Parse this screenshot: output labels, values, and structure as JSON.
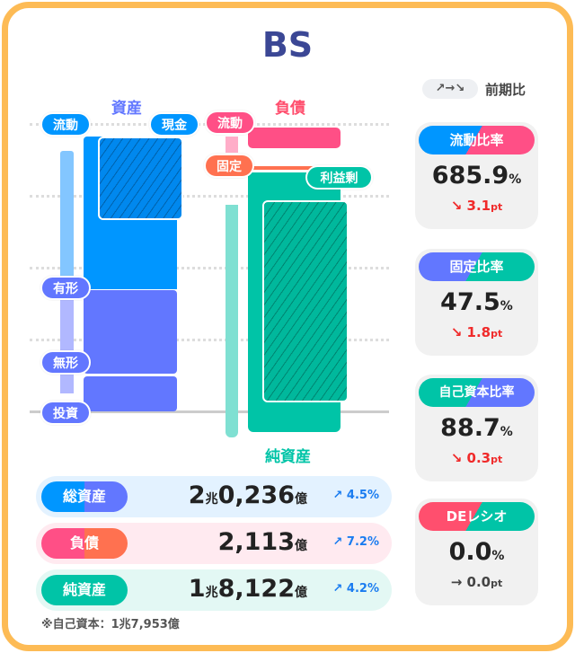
{
  "title": "BS",
  "legend": {
    "arrows": "↗→↘",
    "label": "前期比"
  },
  "assets": {
    "title": "資産",
    "labels": {
      "current": "流動",
      "cash": "現金",
      "tangible": "有形",
      "intangible": "無形",
      "investment": "投資"
    }
  },
  "liabilities": {
    "title": "負債",
    "labels": {
      "current": "流動",
      "fixed": "固定",
      "retained": "利益剰"
    }
  },
  "net_assets_title": "純資産",
  "colors": {
    "blue": "#0096ff",
    "purple": "#6277ff",
    "pink": "#ff4f86",
    "orange": "#ff7150",
    "teal": "#00c4a7",
    "frame": "#fdbb55"
  },
  "summary": [
    {
      "label": "総資産",
      "big1": "2",
      "unit1": "兆",
      "big2": "0,236",
      "unit2": "億",
      "change": "↗ 4.5%"
    },
    {
      "label": "負債",
      "big1": "",
      "unit1": "",
      "big2": "2,113",
      "unit2": "億",
      "change": "↗ 7.2%"
    },
    {
      "label": "純資産",
      "big1": "1",
      "unit1": "兆",
      "big2": "8,122",
      "unit2": "億",
      "change": "↗ 4.2%"
    }
  ],
  "footnote": "※自己資本：1兆7,953億",
  "ratios": [
    {
      "label": "流動比率",
      "value": "685.9",
      "unit": "%",
      "change": "↘ 3.1",
      "change_unit": "pt",
      "direction": "down"
    },
    {
      "label": "固定比率",
      "value": "47.5",
      "unit": "%",
      "change": "↘ 1.8",
      "change_unit": "pt",
      "direction": "down"
    },
    {
      "label": "自己資本比率",
      "value": "88.7",
      "unit": "%",
      "change": "↘ 0.3",
      "change_unit": "pt",
      "direction": "down"
    },
    {
      "label": "DEレシオ",
      "value": "0.0",
      "unit": "%",
      "change": "→ 0.0",
      "change_unit": "pt",
      "direction": "flat"
    }
  ]
}
